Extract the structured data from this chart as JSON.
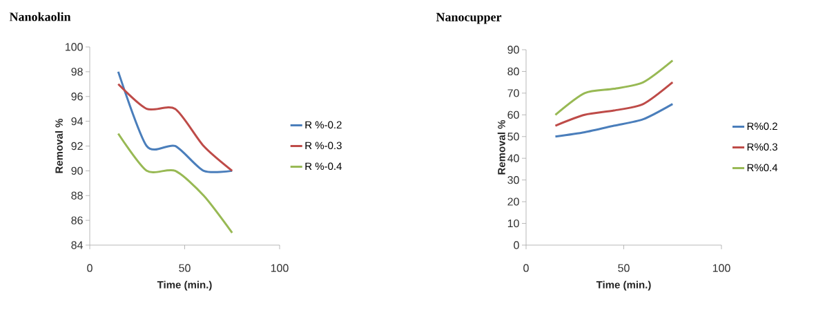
{
  "chart_data": [
    {
      "type": "line",
      "title": "Nanokaolin",
      "xlabel": "Time (min.)",
      "ylabel": "Removal %",
      "x": [
        15,
        30,
        45,
        60,
        75
      ],
      "xlim": [
        0,
        100
      ],
      "xticks": [
        0,
        50,
        100
      ],
      "ylim": [
        84,
        100
      ],
      "yticks": [
        84,
        86,
        88,
        90,
        92,
        94,
        96,
        98,
        100
      ],
      "legend": "right",
      "grid": false,
      "marker": "none",
      "series": [
        {
          "name": "R %-0.2",
          "color": "#4a7ebb",
          "values": [
            98,
            92,
            92,
            90,
            90
          ]
        },
        {
          "name": "R %-0.3",
          "color": "#be4b48",
          "values": [
            97,
            95,
            95,
            92,
            90
          ]
        },
        {
          "name": "R %-0.4",
          "color": "#98b954",
          "values": [
            93,
            90,
            90,
            88,
            85
          ]
        }
      ]
    },
    {
      "type": "line",
      "title": "Nanocupper",
      "xlabel": "Time (min.)",
      "ylabel": "Removal %",
      "x": [
        15,
        30,
        45,
        60,
        75
      ],
      "xlim": [
        0,
        100
      ],
      "xticks": [
        0,
        50,
        100
      ],
      "ylim": [
        0,
        90
      ],
      "yticks": [
        0,
        10,
        20,
        30,
        40,
        50,
        60,
        70,
        80,
        90
      ],
      "legend": "right",
      "grid": false,
      "marker": "none",
      "series": [
        {
          "name": "R%0.2",
          "color": "#4a7ebb",
          "values": [
            50,
            52,
            55,
            58,
            65
          ]
        },
        {
          "name": "R%0.3",
          "color": "#be4b48",
          "values": [
            55,
            60,
            62,
            65,
            75
          ]
        },
        {
          "name": "R%0.4",
          "color": "#98b954",
          "values": [
            60,
            70,
            72,
            75,
            85
          ]
        }
      ]
    }
  ]
}
